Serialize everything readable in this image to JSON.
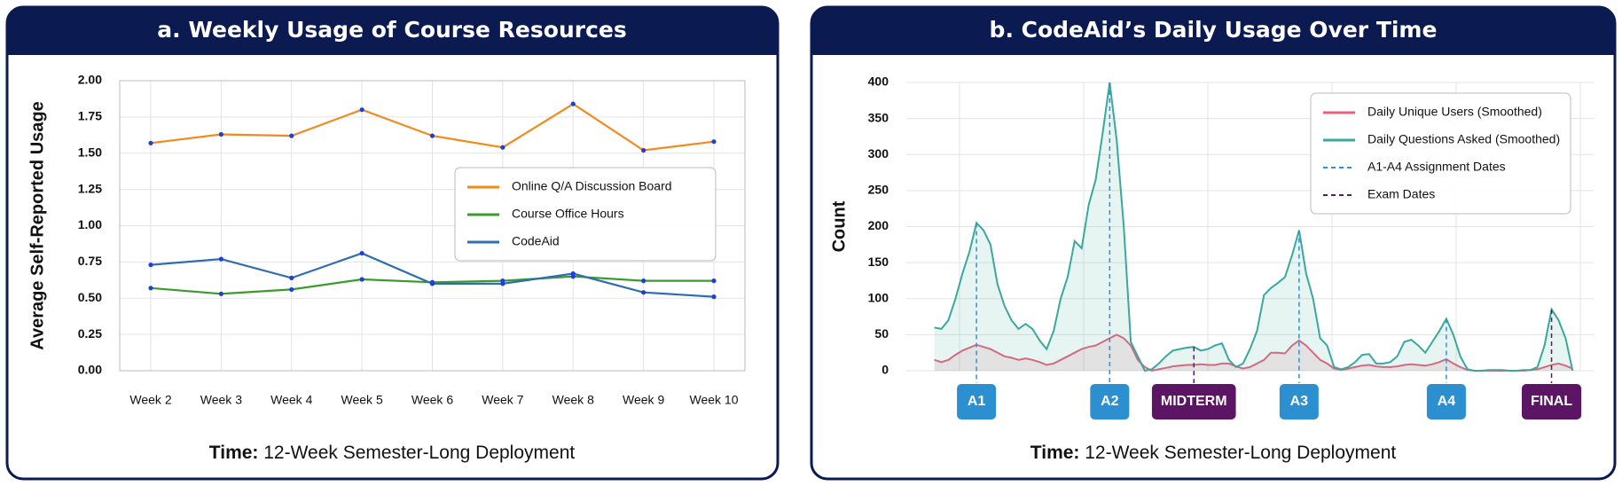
{
  "chart_data": [
    {
      "type": "line",
      "title": "a. Weekly Usage of Course Resources",
      "ylabel": "Average Self-Reported Usage",
      "xlabel": {
        "bold": "Time:",
        "text": "12-Week Semester-Long Deployment"
      },
      "categories": [
        "Week 2",
        "Week 3",
        "Week 4",
        "Week 5",
        "Week 6",
        "Week 7",
        "Week 8",
        "Week 9",
        "Week 10"
      ],
      "series": [
        {
          "name": "Online Q/A Discussion Board",
          "color": "#f28a1e",
          "values": [
            1.57,
            1.63,
            1.62,
            1.8,
            1.62,
            1.54,
            1.84,
            1.52,
            1.58
          ]
        },
        {
          "name": "Course Office Hours",
          "color": "#3a9b2c",
          "values": [
            0.57,
            0.53,
            0.56,
            0.63,
            0.61,
            0.62,
            0.65,
            0.62,
            0.62
          ]
        },
        {
          "name": "CodeAid",
          "color": "#2f6db3",
          "values": [
            0.73,
            0.77,
            0.64,
            0.81,
            0.6,
            0.6,
            0.67,
            0.54,
            0.51
          ]
        }
      ],
      "ylim": [
        0,
        2
      ],
      "yticks": [
        {
          "value": 0,
          "label": "0.00"
        },
        {
          "value": 0.25,
          "label": "0.25"
        },
        {
          "value": 0.5,
          "label": "0.50"
        },
        {
          "value": 0.75,
          "label": "0.75"
        },
        {
          "value": 1,
          "label": "1.00"
        },
        {
          "value": 1.25,
          "label": "1.25"
        },
        {
          "value": 1.5,
          "label": "1.50"
        },
        {
          "value": 1.75,
          "label": "1.75"
        },
        {
          "value": 2,
          "label": "2.00"
        }
      ],
      "grid": true,
      "legend": "right"
    },
    {
      "type": "area",
      "title": "b. CodeAid’s Daily Usage Over Time",
      "ylabel": "Count",
      "xlabel": {
        "bold": "Time:",
        "text": "12-Week Semester-Long Deployment"
      },
      "x": [
        0,
        1,
        2,
        3,
        4,
        5,
        6,
        7,
        8,
        9,
        10,
        11,
        12,
        13,
        14,
        15,
        16,
        17,
        18,
        19,
        20,
        21,
        22,
        23,
        24,
        25,
        26,
        27,
        28,
        29,
        30,
        31,
        32,
        33,
        34,
        35,
        36,
        37,
        38,
        39,
        40,
        41,
        42,
        43,
        44,
        45,
        46,
        47,
        48,
        49,
        50,
        51,
        52,
        53,
        54,
        55,
        56,
        57,
        58,
        59,
        60,
        61,
        62,
        63,
        64,
        65,
        66,
        67,
        68,
        69,
        70,
        71,
        72,
        73,
        74,
        75,
        76,
        77,
        78,
        79,
        80,
        81,
        82,
        83,
        84,
        85,
        86,
        87,
        88,
        89,
        90,
        91
      ],
      "series": [
        {
          "name": "Daily Unique Users (Smoothed)",
          "color": "#e8627e",
          "values": [
            15,
            12,
            15,
            22,
            28,
            32,
            36,
            33,
            30,
            25,
            20,
            18,
            15,
            17,
            15,
            12,
            8,
            10,
            15,
            20,
            25,
            30,
            33,
            35,
            40,
            45,
            50,
            45,
            35,
            15,
            5,
            0,
            2,
            4,
            6,
            7,
            8,
            8,
            9,
            8,
            8,
            10,
            10,
            6,
            3,
            5,
            10,
            15,
            25,
            25,
            24,
            35,
            42,
            35,
            25,
            15,
            10,
            3,
            1,
            3,
            5,
            7,
            8,
            6,
            5,
            5,
            6,
            8,
            9,
            8,
            7,
            9,
            12,
            16,
            10,
            5,
            1,
            0,
            0,
            0,
            0,
            0,
            0,
            0,
            0,
            1,
            2,
            5,
            8,
            10,
            7,
            3
          ]
        },
        {
          "name": "Daily Questions Asked (Smoothed)",
          "color": "#3aa89c",
          "values": [
            60,
            58,
            70,
            100,
            135,
            165,
            205,
            195,
            175,
            120,
            90,
            70,
            58,
            65,
            58,
            42,
            30,
            55,
            100,
            130,
            180,
            170,
            230,
            265,
            330,
            400,
            320,
            200,
            40,
            20,
            0,
            2,
            10,
            20,
            28,
            30,
            32,
            33,
            28,
            30,
            35,
            38,
            15,
            5,
            10,
            30,
            55,
            105,
            115,
            122,
            130,
            160,
            195,
            135,
            100,
            45,
            35,
            5,
            2,
            5,
            12,
            22,
            23,
            10,
            10,
            12,
            20,
            40,
            43,
            35,
            25,
            40,
            55,
            72,
            50,
            20,
            2,
            0,
            0,
            1,
            1,
            1,
            0,
            0,
            1,
            1,
            5,
            35,
            85,
            70,
            45,
            0
          ]
        }
      ],
      "event_legend": [
        {
          "name": "A1-A4 Assignment Dates",
          "color": "#2f8fd6"
        },
        {
          "name": "Exam Dates",
          "color": "#5a1a66"
        }
      ],
      "events": [
        {
          "label": "A1",
          "x": 6,
          "kind": 0
        },
        {
          "label": "A2",
          "x": 25,
          "kind": 0
        },
        {
          "label": "MIDTERM",
          "x": 37,
          "kind": 1
        },
        {
          "label": "A3",
          "x": 52,
          "kind": 0
        },
        {
          "label": "A4",
          "x": 73,
          "kind": 0
        },
        {
          "label": "FINAL",
          "x": 88,
          "kind": 1
        }
      ],
      "xlim": [
        -4,
        94
      ],
      "ylim": [
        0,
        400
      ],
      "yticks": [
        0,
        50,
        100,
        150,
        200,
        250,
        300,
        350,
        400
      ],
      "grid": true,
      "legend": "upper right"
    }
  ]
}
